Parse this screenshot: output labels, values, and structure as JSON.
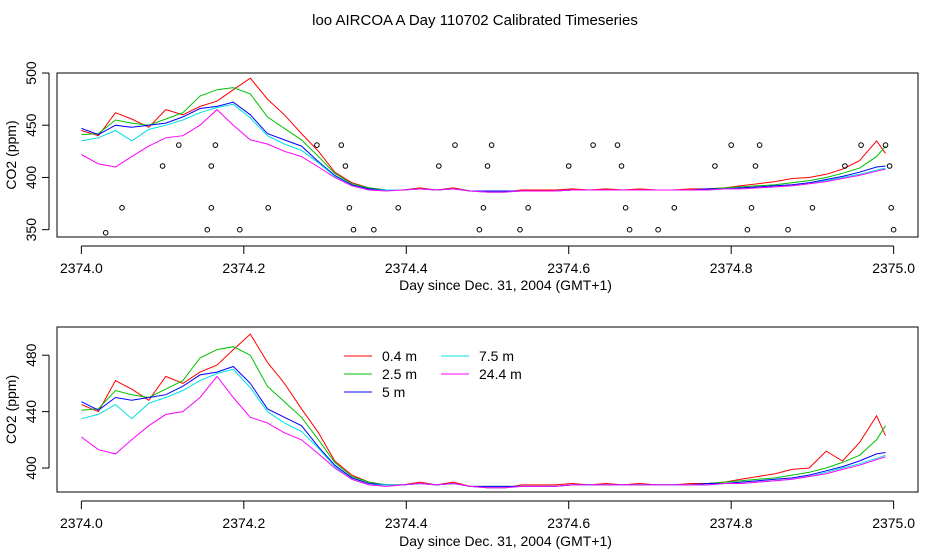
{
  "figure": {
    "title": "loo AIRCOA A  Day 110702  Calibrated Timeseries"
  },
  "colors": {
    "0.4 m": "#ff0000",
    "2.5 m": "#00c000",
    "5 m": "#0000ff",
    "7.5 m": "#00e0e0",
    "24.4 m": "#ff00ff"
  },
  "chart_data": [
    {
      "type": "line",
      "title": "",
      "xlabel": "Day since Dec. 31, 2004 (GMT+1)",
      "ylabel": "CO2 (ppm)",
      "xlim": [
        2373.97,
        2375.03
      ],
      "ylim": [
        343,
        500
      ],
      "xticks": [
        2374.0,
        2374.2,
        2374.4,
        2374.6,
        2374.8,
        2375.0
      ],
      "xtick_labels": [
        "2374.0",
        "2374.2",
        "2374.4",
        "2374.6",
        "2374.8",
        "2375.0"
      ],
      "yticks": [
        350,
        400,
        450,
        500
      ],
      "ytick_labels": [
        "350",
        "400",
        "450",
        "500"
      ],
      "grid": false,
      "legend": "none",
      "x": [
        2374.0,
        2374.021,
        2374.042,
        2374.062,
        2374.083,
        2374.104,
        2374.125,
        2374.146,
        2374.167,
        2374.187,
        2374.208,
        2374.229,
        2374.25,
        2374.271,
        2374.292,
        2374.312,
        2374.333,
        2374.354,
        2374.375,
        2374.396,
        2374.417,
        2374.437,
        2374.458,
        2374.479,
        2374.5,
        2374.521,
        2374.542,
        2374.562,
        2374.583,
        2374.604,
        2374.625,
        2374.646,
        2374.667,
        2374.687,
        2374.708,
        2374.729,
        2374.75,
        2374.771,
        2374.792,
        2374.812,
        2374.833,
        2374.854,
        2374.875,
        2374.896,
        2374.917,
        2374.937,
        2374.958,
        2374.979,
        2374.99
      ],
      "series": [
        {
          "name": "0.4 m",
          "values": [
            445,
            440,
            462,
            456,
            448,
            465,
            460,
            468,
            473,
            484,
            495,
            475,
            460,
            442,
            425,
            405,
            395,
            390,
            388,
            388,
            390,
            388,
            390,
            387,
            386,
            386,
            388,
            388,
            388,
            389,
            388,
            389,
            388,
            389,
            388,
            388,
            389,
            389,
            390,
            392,
            394,
            396,
            399,
            400,
            403,
            408,
            416,
            435,
            423
          ]
        },
        {
          "name": "2.5 m",
          "values": [
            441,
            442,
            455,
            452,
            450,
            456,
            462,
            478,
            484,
            486,
            480,
            458,
            447,
            436,
            420,
            404,
            394,
            390,
            388,
            388,
            389,
            388,
            389,
            387,
            387,
            387,
            387,
            387,
            387,
            388,
            388,
            388,
            388,
            388,
            388,
            388,
            388,
            389,
            390,
            391,
            392,
            393,
            395,
            397,
            400,
            404,
            409,
            420,
            430
          ]
        },
        {
          "name": "5 m",
          "values": [
            447,
            441,
            450,
            448,
            450,
            452,
            458,
            466,
            468,
            472,
            460,
            442,
            436,
            430,
            415,
            402,
            393,
            389,
            388,
            388,
            389,
            388,
            389,
            387,
            387,
            387,
            387,
            387,
            387,
            388,
            388,
            388,
            388,
            388,
            388,
            388,
            388,
            389,
            389,
            390,
            391,
            392,
            393,
            395,
            398,
            401,
            405,
            410,
            411
          ]
        },
        {
          "name": "7.5 m",
          "values": [
            435,
            438,
            445,
            435,
            446,
            450,
            455,
            462,
            467,
            470,
            457,
            440,
            432,
            426,
            414,
            401,
            392,
            388,
            388,
            388,
            389,
            388,
            389,
            387,
            386,
            386,
            387,
            387,
            387,
            388,
            388,
            388,
            388,
            388,
            388,
            388,
            388,
            388,
            389,
            389,
            390,
            391,
            392,
            394,
            397,
            400,
            403,
            407,
            409
          ]
        },
        {
          "name": "24.4 m",
          "values": [
            422,
            413,
            410,
            420,
            430,
            438,
            440,
            450,
            465,
            450,
            436,
            432,
            425,
            420,
            410,
            400,
            392,
            388,
            387,
            388,
            389,
            388,
            389,
            387,
            386,
            386,
            387,
            387,
            387,
            388,
            388,
            388,
            388,
            388,
            388,
            388,
            388,
            388,
            389,
            389,
            390,
            391,
            392,
            394,
            396,
            399,
            402,
            406,
            408
          ]
        }
      ],
      "points_x": [
        2374.03,
        2374.05,
        2374.1,
        2374.12,
        2374.155,
        2374.16,
        2374.16,
        2374.165,
        2374.195,
        2374.23,
        2374.29,
        2374.32,
        2374.325,
        2374.33,
        2374.335,
        2374.36,
        2374.39,
        2374.44,
        2374.46,
        2374.49,
        2374.495,
        2374.5,
        2374.505,
        2374.54,
        2374.55,
        2374.6,
        2374.63,
        2374.66,
        2374.665,
        2374.67,
        2374.675,
        2374.71,
        2374.73,
        2374.78,
        2374.8,
        2374.82,
        2374.825,
        2374.83,
        2374.835,
        2374.87,
        2374.9,
        2374.94,
        2374.96,
        2374.99,
        2374.995,
        2374.997,
        2375.0
      ],
      "points_y": [
        347,
        371,
        411,
        431,
        350,
        371,
        411,
        431,
        350,
        371,
        431,
        431,
        411,
        371,
        350,
        350,
        371,
        411,
        431,
        350,
        371,
        411,
        431,
        350,
        371,
        411,
        431,
        431,
        411,
        371,
        350,
        350,
        371,
        411,
        431,
        350,
        371,
        411,
        431,
        350,
        371,
        411,
        431,
        431,
        411,
        371,
        350
      ]
    },
    {
      "type": "line",
      "title": "",
      "xlabel": "Day since Dec. 31, 2004 (GMT+1)",
      "ylabel": "CO2 (ppm)",
      "xlim": [
        2373.97,
        2375.03
      ],
      "ylim": [
        383,
        500
      ],
      "xticks": [
        2374.0,
        2374.2,
        2374.4,
        2374.6,
        2374.8,
        2375.0
      ],
      "xtick_labels": [
        "2374.0",
        "2374.2",
        "2374.4",
        "2374.6",
        "2374.8",
        "2375.0"
      ],
      "yticks": [
        400,
        440,
        480
      ],
      "ytick_labels": [
        "400",
        "440",
        "480"
      ],
      "grid": false,
      "legend": "top-center",
      "x": [
        2374.0,
        2374.021,
        2374.042,
        2374.062,
        2374.083,
        2374.104,
        2374.125,
        2374.146,
        2374.167,
        2374.187,
        2374.208,
        2374.229,
        2374.25,
        2374.271,
        2374.292,
        2374.312,
        2374.333,
        2374.354,
        2374.375,
        2374.396,
        2374.417,
        2374.437,
        2374.458,
        2374.479,
        2374.5,
        2374.521,
        2374.542,
        2374.562,
        2374.583,
        2374.604,
        2374.625,
        2374.646,
        2374.667,
        2374.687,
        2374.708,
        2374.729,
        2374.75,
        2374.771,
        2374.792,
        2374.812,
        2374.833,
        2374.854,
        2374.875,
        2374.896,
        2374.917,
        2374.937,
        2374.958,
        2374.979,
        2374.99
      ],
      "series": [
        {
          "name": "0.4 m",
          "values": [
            445,
            440,
            462,
            456,
            448,
            465,
            460,
            468,
            473,
            484,
            495,
            475,
            460,
            442,
            425,
            405,
            395,
            390,
            388,
            388,
            390,
            388,
            390,
            387,
            386,
            386,
            388,
            388,
            388,
            389,
            388,
            389,
            388,
            389,
            388,
            388,
            389,
            389,
            390,
            392,
            394,
            396,
            399,
            400,
            412,
            405,
            418,
            437,
            423
          ]
        },
        {
          "name": "2.5 m",
          "values": [
            441,
            442,
            455,
            452,
            450,
            456,
            462,
            478,
            484,
            486,
            480,
            458,
            447,
            436,
            420,
            404,
            394,
            390,
            388,
            388,
            389,
            388,
            389,
            387,
            387,
            387,
            387,
            387,
            387,
            388,
            388,
            388,
            388,
            388,
            388,
            388,
            388,
            389,
            390,
            391,
            392,
            393,
            395,
            397,
            400,
            404,
            409,
            420,
            430
          ]
        },
        {
          "name": "5 m",
          "values": [
            447,
            441,
            450,
            448,
            450,
            452,
            458,
            466,
            468,
            472,
            460,
            442,
            436,
            430,
            415,
            402,
            393,
            389,
            388,
            388,
            389,
            388,
            389,
            387,
            387,
            387,
            387,
            387,
            387,
            388,
            388,
            388,
            388,
            388,
            388,
            388,
            388,
            389,
            389,
            390,
            391,
            392,
            393,
            395,
            398,
            401,
            405,
            410,
            411
          ]
        },
        {
          "name": "7.5 m",
          "values": [
            435,
            438,
            445,
            435,
            446,
            450,
            455,
            462,
            467,
            470,
            457,
            440,
            432,
            426,
            414,
            401,
            392,
            388,
            388,
            388,
            389,
            388,
            389,
            387,
            386,
            386,
            387,
            387,
            387,
            388,
            388,
            388,
            388,
            388,
            388,
            388,
            388,
            388,
            389,
            389,
            390,
            391,
            392,
            394,
            397,
            400,
            403,
            407,
            409
          ]
        },
        {
          "name": "24.4 m",
          "values": [
            422,
            413,
            410,
            420,
            430,
            438,
            440,
            450,
            465,
            450,
            436,
            432,
            425,
            420,
            410,
            400,
            392,
            388,
            387,
            388,
            389,
            388,
            389,
            387,
            386,
            386,
            387,
            387,
            387,
            388,
            388,
            388,
            388,
            388,
            388,
            388,
            388,
            388,
            389,
            389,
            390,
            391,
            392,
            394,
            396,
            399,
            402,
            406,
            408
          ]
        }
      ]
    }
  ]
}
